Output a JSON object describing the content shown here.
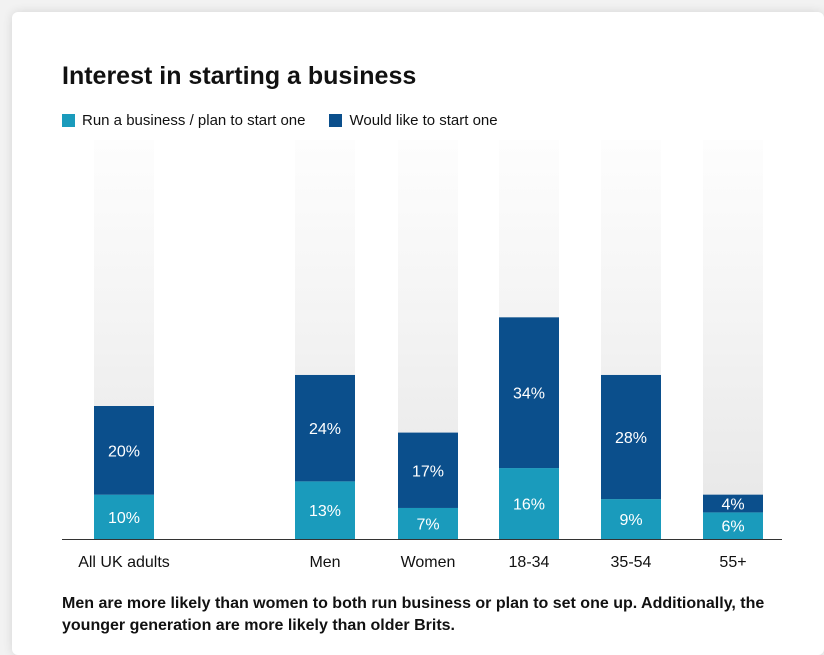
{
  "colors": {
    "run": "#1a9bbc",
    "would": "#0b4f8c",
    "track_top": "#f6f6f6",
    "track_bottom": "#e6e6e6",
    "axis": "#333333",
    "label_text": "#ffffff"
  },
  "chart_data": {
    "type": "bar",
    "stacked": true,
    "title": "Interest in starting a business",
    "categories": [
      "All UK adults",
      "Men",
      "Women",
      "18-34",
      "35-54",
      "55+"
    ],
    "series": [
      {
        "name": "Run a business / plan to start one",
        "values": [
          10,
          13,
          7,
          16,
          9,
          6
        ],
        "labels": [
          "10%",
          "13%",
          "7%",
          "16%",
          "9%",
          "6%"
        ]
      },
      {
        "name": "Would like to start one",
        "values": [
          20,
          24,
          17,
          34,
          28,
          4
        ],
        "labels": [
          "20%",
          "24%",
          "17%",
          "34%",
          "28%",
          "4%"
        ]
      }
    ],
    "ylim": [
      0,
      90
    ],
    "grid": false,
    "legend_position": "top-left"
  },
  "caption": "Men are more likely than women to both run business or plan to set one up. Additionally, the younger generation are more likely than older Brits."
}
